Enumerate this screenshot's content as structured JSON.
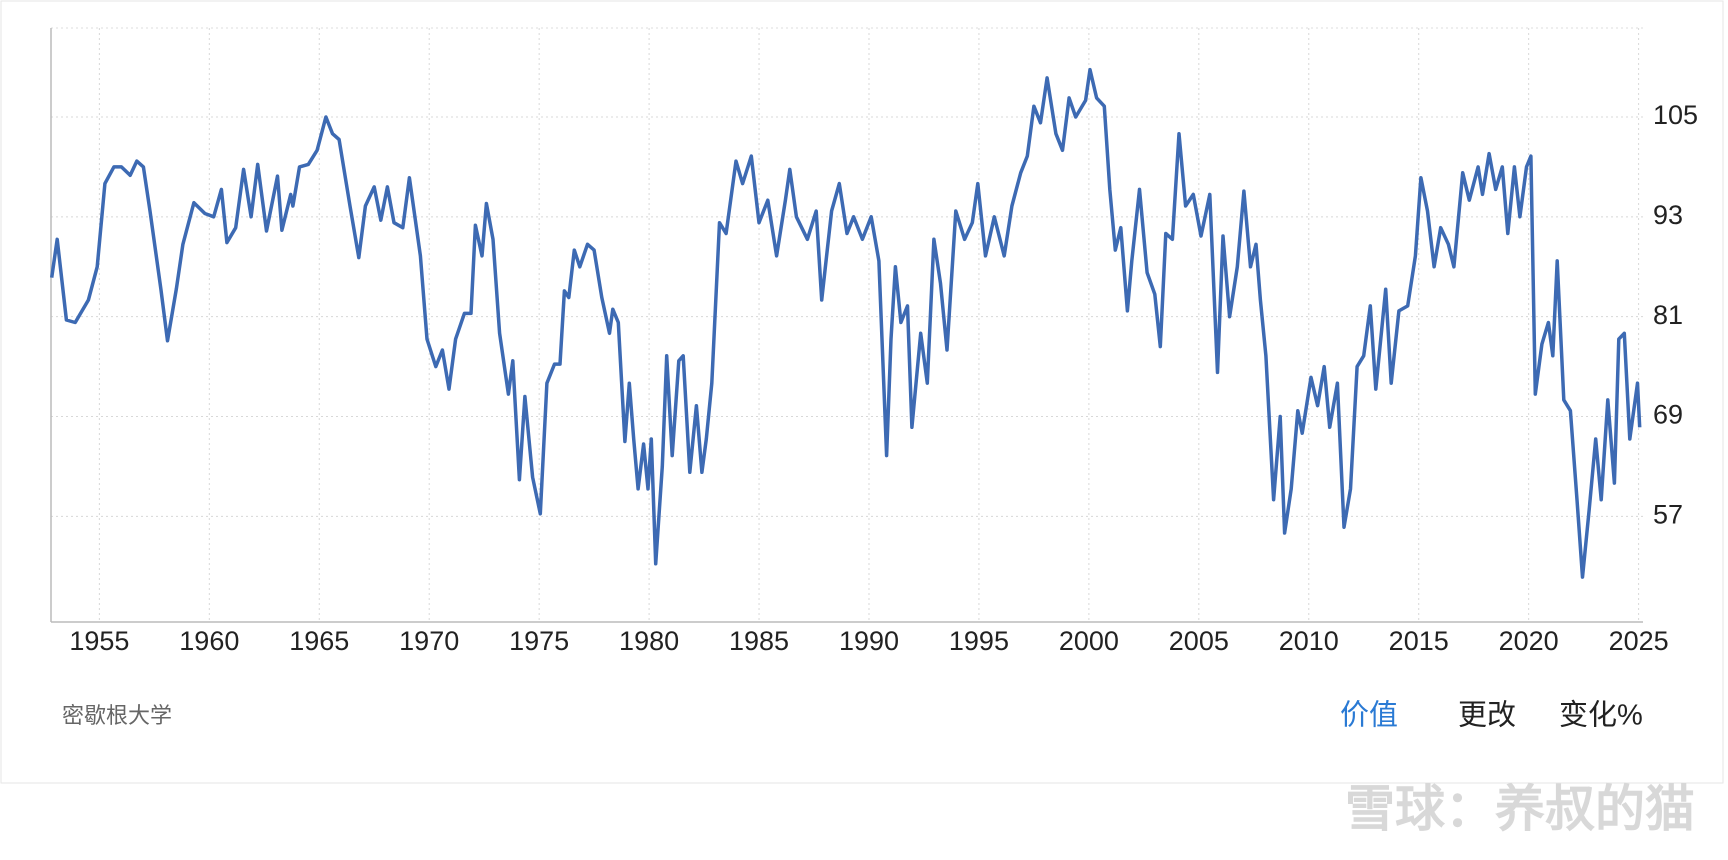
{
  "chart_data": {
    "type": "line",
    "source": "密歇根大学",
    "controls": [
      "价值",
      "更改",
      "变化%"
    ],
    "watermark": "雪球：养叔的猫",
    "xlim": [
      1952.8,
      2025.2
    ],
    "ylim": [
      44.3,
      115.7
    ],
    "xticks": [
      1955,
      1960,
      1965,
      1970,
      1975,
      1980,
      1985,
      1990,
      1995,
      2000,
      2005,
      2010,
      2015,
      2020,
      2025
    ],
    "yticks": [
      57,
      69,
      81,
      93,
      105
    ],
    "grid": true,
    "x": [
      1952.83,
      1953.08,
      1953.5,
      1953.9,
      1954.5,
      1954.9,
      1955.25,
      1955.66,
      1956.0,
      1956.4,
      1956.7,
      1957.0,
      1957.3,
      1957.8,
      1958.1,
      1958.5,
      1958.8,
      1959.3,
      1959.8,
      1960.2,
      1960.55,
      1960.8,
      1961.2,
      1961.56,
      1961.9,
      1962.2,
      1962.6,
      1963.1,
      1963.3,
      1963.7,
      1963.8,
      1964.1,
      1964.5,
      1964.9,
      1965.3,
      1965.6,
      1965.9,
      1966.4,
      1966.8,
      1967.1,
      1967.5,
      1967.8,
      1968.1,
      1968.4,
      1968.8,
      1969.1,
      1969.6,
      1969.9,
      1970.3,
      1970.6,
      1970.9,
      1971.2,
      1971.6,
      1971.9,
      1972.1,
      1972.4,
      1972.6,
      1972.9,
      1973.2,
      1973.6,
      1973.8,
      1974.1,
      1974.35,
      1974.7,
      1975.05,
      1975.35,
      1975.7,
      1975.95,
      1976.15,
      1976.35,
      1976.6,
      1976.85,
      1977.2,
      1977.5,
      1977.85,
      1978.2,
      1978.35,
      1978.6,
      1978.9,
      1979.1,
      1979.3,
      1979.5,
      1979.75,
      1979.95,
      1980.1,
      1980.3,
      1980.6,
      1980.8,
      1981.05,
      1981.35,
      1981.55,
      1981.85,
      1982.15,
      1982.4,
      1982.6,
      1982.85,
      1983.2,
      1983.5,
      1983.95,
      1984.25,
      1984.65,
      1985.0,
      1985.4,
      1985.8,
      1986.2,
      1986.4,
      1986.7,
      1987.2,
      1987.6,
      1987.85,
      1988.3,
      1988.65,
      1989.0,
      1989.3,
      1989.7,
      1990.1,
      1990.45,
      1990.8,
      1991.0,
      1991.2,
      1991.45,
      1991.75,
      1991.95,
      1992.35,
      1992.65,
      1992.95,
      1993.25,
      1993.55,
      1993.95,
      1994.35,
      1994.7,
      1994.95,
      1995.3,
      1995.7,
      1996.15,
      1996.5,
      1996.9,
      1997.2,
      1997.5,
      1997.8,
      1998.1,
      1998.5,
      1998.8,
      1999.1,
      1999.4,
      1999.85,
      2000.05,
      2000.35,
      2000.7,
      2000.95,
      2001.2,
      2001.45,
      2001.75,
      2001.95,
      2002.3,
      2002.65,
      2003.0,
      2003.25,
      2003.5,
      2003.8,
      2004.1,
      2004.4,
      2004.75,
      2005.1,
      2005.5,
      2005.85,
      2006.1,
      2006.4,
      2006.75,
      2007.05,
      2007.35,
      2007.6,
      2007.8,
      2008.05,
      2008.4,
      2008.7,
      2008.9,
      2009.2,
      2009.5,
      2009.7,
      2010.1,
      2010.4,
      2010.7,
      2010.95,
      2011.3,
      2011.6,
      2011.9,
      2012.2,
      2012.5,
      2012.8,
      2013.05,
      2013.5,
      2013.75,
      2014.1,
      2014.5,
      2014.85,
      2015.1,
      2015.4,
      2015.7,
      2016.0,
      2016.35,
      2016.6,
      2017.0,
      2017.3,
      2017.7,
      2017.9,
      2018.2,
      2018.5,
      2018.8,
      2019.05,
      2019.35,
      2019.6,
      2019.9,
      2020.1,
      2020.3,
      2020.6,
      2020.9,
      2021.1,
      2021.3,
      2021.6,
      2021.9,
      2022.2,
      2022.45,
      2022.75,
      2023.05,
      2023.3,
      2023.6,
      2023.9,
      2024.1,
      2024.35,
      2024.6,
      2024.95,
      2025.05
    ],
    "series": [
      {
        "color": "#3d6ab3",
        "values": [
          85.7,
          90.3,
          80.6,
          80.3,
          83,
          87,
          97,
          99,
          99,
          98,
          99.7,
          99,
          93.7,
          84.3,
          78.1,
          84.3,
          89.7,
          94.7,
          93.4,
          93,
          96.3,
          89.9,
          91.7,
          98.7,
          93,
          99.3,
          91.3,
          97.9,
          91.4,
          95.7,
          94.3,
          99,
          99.3,
          101,
          105,
          103,
          102.3,
          94.3,
          88.1,
          94.3,
          96.6,
          92.6,
          96.6,
          92.3,
          91.7,
          97.7,
          88.3,
          78.3,
          75,
          77,
          72.3,
          78.3,
          81.4,
          81.4,
          92,
          88.3,
          94.6,
          90.3,
          79,
          71.7,
          75.7,
          61.4,
          71.4,
          61.7,
          57.3,
          73,
          75.3,
          75.3,
          84.1,
          83.3,
          89,
          87,
          89.7,
          89,
          83.3,
          79,
          81.9,
          80.3,
          66,
          73,
          66.3,
          60.3,
          65.7,
          60.3,
          66.3,
          51.3,
          63,
          76.3,
          64.3,
          75.7,
          76.3,
          62.3,
          70.3,
          62.3,
          66.3,
          73,
          92.3,
          91,
          99.7,
          97,
          100.3,
          92.3,
          95,
          88.3,
          95,
          98.7,
          93,
          90.3,
          93.7,
          83,
          93.7,
          97,
          91,
          93,
          90.3,
          93,
          87.7,
          64.3,
          78.3,
          87,
          80.3,
          82.3,
          67.7,
          79,
          73,
          90.3,
          85,
          77,
          93.7,
          90.3,
          92.3,
          97,
          88.3,
          93,
          88.3,
          94.3,
          98.3,
          100.3,
          106.3,
          104.3,
          109.7,
          103,
          101,
          107.3,
          105,
          107,
          110.7,
          107.3,
          106.3,
          96.3,
          89,
          91.7,
          81.7,
          87.7,
          96.3,
          86.3,
          83.7,
          77.4,
          91,
          90.3,
          103,
          94.3,
          95.7,
          90.7,
          95.7,
          74.3,
          90.7,
          81,
          87,
          96.1,
          87,
          89.7,
          83,
          76.3,
          59,
          69,
          55,
          60.3,
          69.7,
          67,
          73.7,
          70.3,
          75,
          67.7,
          73,
          55.7,
          60.3,
          75,
          76.3,
          82.3,
          72.3,
          84.3,
          73,
          81.7,
          82.3,
          88.3,
          97.7,
          93.7,
          87,
          91.7,
          89.7,
          87,
          98.3,
          95,
          99,
          95.7,
          100.6,
          96.3,
          99,
          91,
          99,
          93,
          99,
          100.3,
          71.7,
          77.7,
          80.3,
          76.3,
          87.7,
          71,
          69.7,
          59,
          49.7,
          57.7,
          66.3,
          59,
          71,
          61,
          78.3,
          79,
          66.3,
          73,
          67.7
        ]
      }
    ]
  }
}
